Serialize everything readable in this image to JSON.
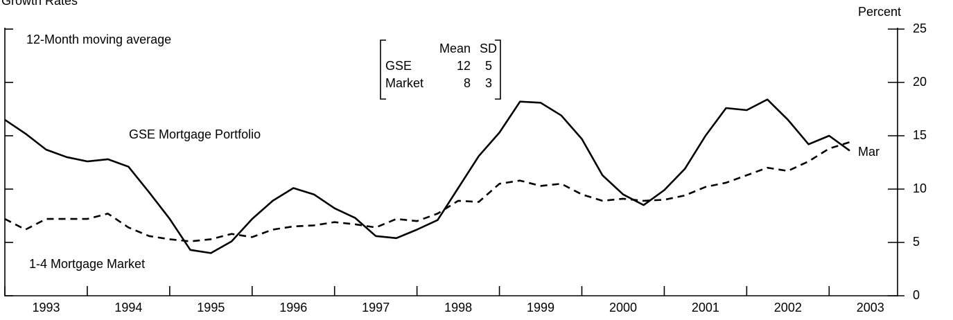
{
  "chart_data": {
    "type": "line",
    "title": "Growth Rates",
    "y_axis_label": "Percent",
    "annotations": [
      "12-Month moving average",
      "GSE Mortgage Portfolio",
      "1-4 Mortgage Market",
      "Mar"
    ],
    "x": [
      1993,
      1993.25,
      1993.5,
      1993.75,
      1994,
      1994.25,
      1994.5,
      1994.75,
      1995,
      1995.25,
      1995.5,
      1995.75,
      1996,
      1996.25,
      1996.5,
      1996.75,
      1997,
      1997.25,
      1997.5,
      1997.75,
      1998,
      1998.25,
      1998.5,
      1998.75,
      1999,
      1999.25,
      1999.5,
      1999.75,
      2000,
      2000.25,
      2000.5,
      2000.75,
      2001,
      2001.25,
      2001.5,
      2001.75,
      2002,
      2002.25,
      2002.5,
      2002.75,
      2003,
      2003.25
    ],
    "series": [
      {
        "name": "GSE Mortgage Portfolio",
        "color": "#000000",
        "dash": false,
        "values": [
          16.5,
          15.2,
          13.7,
          13.0,
          12.6,
          12.8,
          12.1,
          9.7,
          7.2,
          4.3,
          4.0,
          5.1,
          7.2,
          8.9,
          10.1,
          9.5,
          8.2,
          7.3,
          5.6,
          5.4,
          6.2,
          7.1,
          10.1,
          13.1,
          15.3,
          18.2,
          18.1,
          16.9,
          14.7,
          11.3,
          9.5,
          8.5,
          9.9,
          11.9,
          15.0,
          17.6,
          17.4,
          18.4,
          16.5,
          14.2,
          15.0,
          13.6
        ]
      },
      {
        "name": "1-4 Mortgage Market",
        "color": "#000000",
        "dash": true,
        "values": [
          7.2,
          6.2,
          7.2,
          7.2,
          7.2,
          7.7,
          6.4,
          5.6,
          5.3,
          5.1,
          5.3,
          5.8,
          5.5,
          6.2,
          6.5,
          6.6,
          6.9,
          6.7,
          6.4,
          7.2,
          7.0,
          7.7,
          8.9,
          8.8,
          10.5,
          10.8,
          10.3,
          10.5,
          9.5,
          8.9,
          9.1,
          8.9,
          9.0,
          9.4,
          10.2,
          10.6,
          11.3,
          12.0,
          11.7,
          12.6,
          13.8,
          14.4
        ]
      }
    ],
    "xlim": [
      1993,
      2003.83
    ],
    "xticks": [
      1993,
      1994,
      1995,
      1996,
      1997,
      1998,
      1999,
      2000,
      2001,
      2002,
      2003
    ],
    "ylim": [
      0,
      25
    ],
    "yticks": [
      0,
      5,
      10,
      15,
      20,
      25
    ],
    "table": {
      "columns": [
        "Mean",
        "SD"
      ],
      "rows": [
        [
          "GSE",
          12,
          5
        ],
        [
          "Market",
          8,
          3
        ]
      ]
    }
  }
}
